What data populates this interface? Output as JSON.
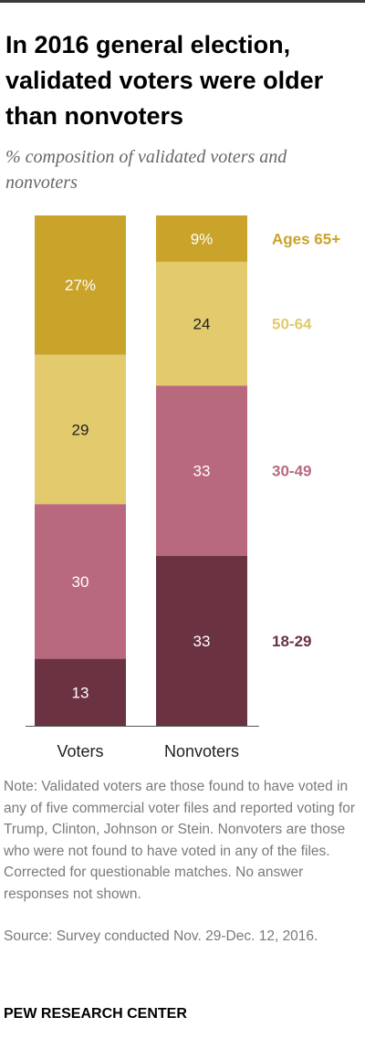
{
  "title": "In 2016 general election, validated voters were older than nonvoters",
  "subtitle": "% composition of validated voters and nonvoters",
  "note": "Note: Validated voters are those found to have voted in any of five commercial voter files and reported voting for Trump, Clinton, Johnson or Stein. Nonvoters are those who were not found to have voted in any of the files. Corrected for questionable matches. No answer responses not shown.",
  "source": "Source: Survey conducted Nov. 29-Dec. 12, 2016.",
  "org": "PEW RESEARCH CENTER",
  "chart_data": {
    "type": "bar",
    "stacked": true,
    "orientation": "vertical",
    "categories": [
      "Voters",
      "Nonvoters"
    ],
    "series": [
      {
        "name": "18-29",
        "values": [
          13,
          33
        ],
        "labels": [
          "13",
          "33"
        ],
        "color": "#6b3242",
        "label_color": "#ffffff",
        "legend_color": "#6b3242"
      },
      {
        "name": "30-49",
        "values": [
          30,
          33
        ],
        "labels": [
          "30",
          "33"
        ],
        "color": "#b9697e",
        "label_color": "#ffffff",
        "legend_color": "#b9697e"
      },
      {
        "name": "50-64",
        "values": [
          29,
          24
        ],
        "labels": [
          "29",
          "24"
        ],
        "color": "#e2ca6d",
        "label_color": "#222222",
        "legend_color": "#e2ca6d"
      },
      {
        "name": "Ages 65+",
        "values": [
          27,
          9
        ],
        "labels": [
          "27%",
          "9%"
        ],
        "color": "#c9a32a",
        "label_color": "#ffffff",
        "legend_color": "#c9a32a"
      }
    ],
    "legend": "right of second bar",
    "grid": false,
    "xlabel": "",
    "ylabel": ""
  }
}
